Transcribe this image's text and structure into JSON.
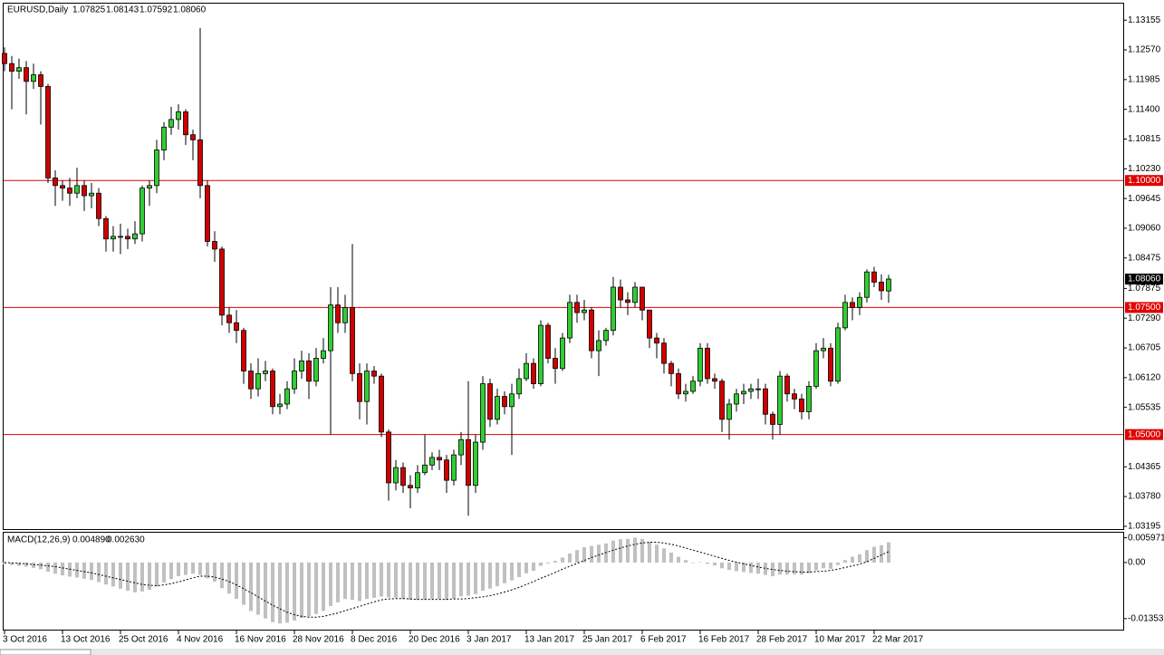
{
  "chart_data": [
    {
      "type": "candlestick",
      "title": "EURUSD,Daily",
      "readout": [
        "1.07825",
        "1.08143",
        "1.07592",
        "1.08060"
      ],
      "categories": [
        "3 Oct 2016",
        null,
        null,
        null,
        null,
        null,
        null,
        null,
        "13 Oct 2016",
        null,
        null,
        null,
        null,
        null,
        null,
        null,
        "25 Oct 2016",
        null,
        null,
        null,
        null,
        null,
        null,
        null,
        "4 Nov 2016",
        null,
        null,
        null,
        null,
        null,
        null,
        null,
        "16 Nov 2016",
        null,
        null,
        null,
        null,
        null,
        null,
        null,
        "28 Nov 2016",
        null,
        null,
        null,
        null,
        null,
        null,
        null,
        "8 Dec 2016",
        null,
        null,
        null,
        null,
        null,
        null,
        null,
        "20 Dec 2016",
        null,
        null,
        null,
        null,
        null,
        null,
        null,
        "3 Jan 2017",
        null,
        null,
        null,
        null,
        null,
        null,
        null,
        "13 Jan 2017",
        null,
        null,
        null,
        null,
        null,
        null,
        null,
        "25 Jan 2017",
        null,
        null,
        null,
        null,
        null,
        null,
        null,
        "6 Feb 2017",
        null,
        null,
        null,
        null,
        null,
        null,
        null,
        "16 Feb 2017",
        null,
        null,
        null,
        null,
        null,
        null,
        null,
        "28 Feb 2017",
        null,
        null,
        null,
        null,
        null,
        null,
        null,
        "10 Mar 2017",
        null,
        null,
        null,
        null,
        null,
        null,
        null,
        "22 Mar 2017",
        null,
        null
      ],
      "open": [
        1.125,
        1.123,
        1.1215,
        1.1222,
        1.1195,
        1.1208,
        1.1185,
        1.1005,
        1.099,
        1.0985,
        1.0975,
        1.099,
        1.097,
        1.0975,
        1.0925,
        1.0885,
        1.089,
        1.089,
        1.0885,
        1.0895,
        1.0985,
        1.099,
        1.106,
        1.1105,
        1.112,
        1.1135,
        1.109,
        1.108,
        1.099,
        1.088,
        1.0865,
        1.0735,
        1.072,
        1.0705,
        1.0625,
        1.059,
        1.062,
        1.0625,
        1.0555,
        1.056,
        1.059,
        1.0625,
        1.0645,
        1.0605,
        1.065,
        1.0665,
        1.0755,
        1.072,
        1.075,
        1.062,
        1.0565,
        1.0625,
        1.0615,
        1.0505,
        1.0405,
        1.0435,
        1.04,
        1.0395,
        1.0425,
        1.044,
        1.0455,
        1.045,
        1.041,
        1.046,
        1.049,
        1.04,
        1.0485,
        1.06,
        1.053,
        1.0575,
        1.0555,
        1.058,
        1.061,
        1.064,
        1.06,
        1.0715,
        1.065,
        1.063,
        1.069,
        1.076,
        1.074,
        1.0745,
        1.0665,
        1.0685,
        1.0705,
        1.079,
        1.0765,
        1.076,
        1.079,
        1.0745,
        1.069,
        1.068,
        1.064,
        1.062,
        1.058,
        1.0585,
        1.0605,
        1.067,
        1.061,
        1.0605,
        1.053,
        1.056,
        1.058,
        1.0585,
        1.059,
        1.059,
        1.054,
        1.052,
        1.0615,
        1.058,
        1.057,
        1.0545,
        1.0595,
        1.0665,
        1.067,
        1.0605,
        1.071,
        1.076,
        1.075,
        1.077,
        1.082,
        1.08,
        1.07825
      ],
      "high": [
        1.1262,
        1.1245,
        1.124,
        1.1235,
        1.123,
        1.1215,
        1.119,
        1.102,
        1.1,
        1.1005,
        1.1025,
        1.1,
        1.0995,
        1.0985,
        1.093,
        1.091,
        1.0915,
        1.0905,
        1.092,
        1.099,
        1.1,
        1.108,
        1.1115,
        1.1145,
        1.115,
        1.114,
        1.11,
        1.13,
        1.1,
        1.09,
        1.087,
        1.075,
        1.0745,
        1.071,
        1.064,
        1.065,
        1.0645,
        1.063,
        1.058,
        1.0605,
        1.065,
        1.0665,
        1.066,
        1.067,
        1.069,
        1.079,
        1.079,
        1.0775,
        1.0875,
        1.064,
        1.064,
        1.0635,
        1.062,
        1.051,
        1.045,
        1.0445,
        1.042,
        1.044,
        1.05,
        1.0465,
        1.047,
        1.046,
        1.047,
        1.0505,
        1.0605,
        1.05,
        1.0615,
        1.061,
        1.059,
        1.0585,
        1.06,
        1.063,
        1.066,
        1.065,
        1.0725,
        1.072,
        1.067,
        1.07,
        1.0775,
        1.0775,
        1.0765,
        1.075,
        1.0705,
        1.071,
        1.081,
        1.0805,
        1.078,
        1.08,
        1.079,
        1.0745,
        1.07,
        1.069,
        1.0645,
        1.063,
        1.06,
        1.0615,
        1.068,
        1.068,
        1.062,
        1.061,
        1.057,
        1.059,
        1.06,
        1.06,
        1.061,
        1.06,
        1.0545,
        1.0625,
        1.062,
        1.059,
        1.058,
        1.0605,
        1.068,
        1.069,
        1.068,
        1.072,
        1.0775,
        1.077,
        1.078,
        1.0825,
        1.083,
        1.0815,
        1.08143
      ],
      "low": [
        1.1215,
        1.114,
        1.12,
        1.113,
        1.118,
        1.111,
        1.0995,
        1.095,
        1.096,
        1.095,
        1.0965,
        1.094,
        1.0945,
        1.091,
        1.086,
        1.086,
        1.0855,
        1.0865,
        1.0875,
        1.088,
        1.095,
        1.0975,
        1.104,
        1.109,
        1.11,
        1.107,
        1.104,
        1.0965,
        1.087,
        1.084,
        1.0715,
        1.07,
        1.068,
        1.06,
        1.057,
        1.0575,
        1.0605,
        1.054,
        1.054,
        1.055,
        1.058,
        1.061,
        1.057,
        1.0595,
        1.064,
        1.05,
        1.07,
        1.07,
        1.0605,
        1.053,
        1.052,
        1.06,
        1.0495,
        1.037,
        1.039,
        1.0385,
        1.0355,
        1.0385,
        1.042,
        1.043,
        1.043,
        1.0385,
        1.04,
        1.044,
        1.034,
        1.0385,
        1.047,
        1.0515,
        1.052,
        1.054,
        1.046,
        1.057,
        1.0605,
        1.059,
        1.0595,
        1.064,
        1.06,
        1.0625,
        1.068,
        1.072,
        1.0725,
        1.065,
        1.0615,
        1.0675,
        1.0695,
        1.075,
        1.0735,
        1.075,
        1.0725,
        1.067,
        1.065,
        1.062,
        1.0595,
        1.057,
        1.0565,
        1.058,
        1.0595,
        1.06,
        1.059,
        1.0505,
        1.049,
        1.0545,
        1.056,
        1.057,
        1.057,
        1.052,
        1.049,
        1.05,
        1.0565,
        1.055,
        1.053,
        1.053,
        1.059,
        1.065,
        1.0595,
        1.06,
        1.0705,
        1.0725,
        1.0735,
        1.076,
        1.079,
        1.0765,
        1.07592
      ],
      "close": [
        1.123,
        1.1215,
        1.1222,
        1.1195,
        1.1208,
        1.1185,
        1.1005,
        1.099,
        1.0985,
        1.0975,
        1.099,
        1.097,
        1.0975,
        1.0925,
        1.0885,
        1.089,
        1.089,
        1.0885,
        1.0895,
        1.0985,
        1.099,
        1.106,
        1.1105,
        1.112,
        1.1135,
        1.109,
        1.108,
        1.099,
        1.088,
        1.0865,
        1.0735,
        1.072,
        1.0705,
        1.0625,
        1.059,
        1.062,
        1.0625,
        1.0555,
        1.056,
        1.059,
        1.0625,
        1.0645,
        1.0605,
        1.065,
        1.0665,
        1.0755,
        1.072,
        1.075,
        1.062,
        1.0565,
        1.0625,
        1.0615,
        1.0505,
        1.0405,
        1.0435,
        1.04,
        1.0395,
        1.0425,
        1.044,
        1.0455,
        1.045,
        1.041,
        1.046,
        1.049,
        1.04,
        1.0485,
        1.06,
        1.053,
        1.0575,
        1.0555,
        1.058,
        1.061,
        1.064,
        1.06,
        1.0715,
        1.065,
        1.063,
        1.069,
        1.076,
        1.074,
        1.0745,
        1.0665,
        1.0685,
        1.0705,
        1.079,
        1.0765,
        1.076,
        1.079,
        1.0745,
        1.069,
        1.068,
        1.064,
        1.062,
        1.058,
        1.0585,
        1.0605,
        1.067,
        1.061,
        1.0605,
        1.053,
        1.056,
        1.058,
        1.0585,
        1.059,
        1.059,
        1.054,
        1.052,
        1.0615,
        1.058,
        1.057,
        1.0545,
        1.0595,
        1.0665,
        1.067,
        1.0605,
        1.071,
        1.076,
        1.075,
        1.077,
        1.082,
        1.08,
        1.0783,
        1.0806
      ],
      "up_color": "#32cd32",
      "down_color": "#d00000",
      "ylim": [
        1.0314,
        1.1348
      ],
      "yticks": [
        1.13155,
        {
          "value": 1.1257,
          "label": "1.12570"
        },
        1.11985,
        {
          "value": 1.114,
          "label": "1.11400"
        },
        1.10815,
        {
          "value": 1.1023,
          "label": "1.10230"
        },
        1.09645,
        {
          "value": 1.0906,
          "label": "1.09060"
        },
        1.08475,
        1.07875,
        {
          "value": 1.0729,
          "label": "1.07290"
        },
        1.06705,
        {
          "value": 1.0612,
          "label": "1.06120"
        },
        1.05535,
        1.04365,
        {
          "value": 1.0378,
          "label": "1.03780"
        },
        1.03195
      ],
      "hlines": [
        {
          "value": 1.1,
          "label": "1.10000"
        },
        {
          "value": 1.075,
          "label": "1.07500"
        },
        {
          "value": 1.05,
          "label": "1.05000"
        }
      ],
      "hline_color": "#e00000",
      "price_marker": {
        "value": 1.0806,
        "label": "1.08060"
      }
    },
    {
      "type": "bar",
      "title": "MACD(12,26,9)",
      "readout": [
        "0.004890",
        "0.002630"
      ],
      "values": [
        -0.0004,
        -0.0006,
        -0.0008,
        -0.001,
        -0.0013,
        -0.0016,
        -0.0022,
        -0.0027,
        -0.0031,
        -0.0034,
        -0.0036,
        -0.0039,
        -0.0042,
        -0.0047,
        -0.0053,
        -0.0058,
        -0.0063,
        -0.0068,
        -0.0072,
        -0.007,
        -0.0066,
        -0.0058,
        -0.0048,
        -0.004,
        -0.0033,
        -0.003,
        -0.0027,
        -0.003,
        -0.0038,
        -0.0046,
        -0.0062,
        -0.0075,
        -0.0088,
        -0.0102,
        -0.0117,
        -0.0126,
        -0.0135,
        -0.0144,
        -0.0147,
        -0.0145,
        -0.014,
        -0.0134,
        -0.013,
        -0.0124,
        -0.0117,
        -0.0105,
        -0.0096,
        -0.0088,
        -0.009,
        -0.0093,
        -0.0088,
        -0.0085,
        -0.0082,
        -0.0084,
        -0.0085,
        -0.0088,
        -0.009,
        -0.009,
        -0.0089,
        -0.0088,
        -0.0088,
        -0.009,
        -0.0087,
        -0.0082,
        -0.008,
        -0.0076,
        -0.0068,
        -0.0063,
        -0.0057,
        -0.005,
        -0.0043,
        -0.0035,
        -0.0026,
        -0.002,
        -0.0008,
        -0.0002,
        0.0004,
        0.0012,
        0.0022,
        0.003,
        0.0037,
        0.004,
        0.0043,
        0.0046,
        0.0053,
        0.0056,
        0.0057,
        0.006,
        0.0057,
        0.005,
        0.0043,
        0.0034,
        0.0024,
        0.0014,
        0.0006,
        0.0,
        0.0001,
        -0.0003,
        -0.0007,
        -0.0014,
        -0.0018,
        -0.0021,
        -0.0023,
        -0.0025,
        -0.0027,
        -0.003,
        -0.0033,
        -0.0029,
        -0.0029,
        -0.0028,
        -0.0029,
        -0.0026,
        -0.0019,
        -0.0014,
        -0.0015,
        -0.0006,
        0.0006,
        0.0014,
        0.002,
        0.003,
        0.0038,
        0.0042,
        0.00489
      ],
      "signal": [
        0.0,
        -0.0001,
        -0.0002,
        -0.0003,
        -0.0005,
        -0.0006,
        -0.0008,
        -0.001,
        -0.0013,
        -0.0016,
        -0.0019,
        -0.0022,
        -0.0025,
        -0.0029,
        -0.0033,
        -0.0037,
        -0.0041,
        -0.0045,
        -0.0049,
        -0.0053,
        -0.0055,
        -0.0056,
        -0.0054,
        -0.0051,
        -0.0047,
        -0.0042,
        -0.0037,
        -0.0033,
        -0.0033,
        -0.0035,
        -0.004,
        -0.0046,
        -0.0054,
        -0.0063,
        -0.0073,
        -0.0083,
        -0.0093,
        -0.0103,
        -0.0112,
        -0.012,
        -0.0126,
        -0.013,
        -0.0132,
        -0.0132,
        -0.013,
        -0.0126,
        -0.0122,
        -0.0116,
        -0.0111,
        -0.0106,
        -0.01,
        -0.0095,
        -0.009,
        -0.0088,
        -0.0087,
        -0.0087,
        -0.0088,
        -0.0089,
        -0.0089,
        -0.0089,
        -0.0089,
        -0.0089,
        -0.0088,
        -0.0088,
        -0.0087,
        -0.0085,
        -0.0083,
        -0.008,
        -0.0076,
        -0.0071,
        -0.0066,
        -0.006,
        -0.0053,
        -0.0046,
        -0.0038,
        -0.0031,
        -0.0024,
        -0.0016,
        -0.0009,
        -0.0002,
        0.0005,
        0.0012,
        0.0018,
        0.0024,
        0.003,
        0.0035,
        0.004,
        0.0044,
        0.0047,
        0.0049,
        0.0049,
        0.0047,
        0.0044,
        0.004,
        0.0035,
        0.003,
        0.0025,
        0.002,
        0.0015,
        0.001,
        0.0005,
        0.0001,
        -0.0003,
        -0.0007,
        -0.0011,
        -0.0014,
        -0.0017,
        -0.0019,
        -0.0021,
        -0.0022,
        -0.0023,
        -0.0023,
        -0.0022,
        -0.0021,
        -0.0019,
        -0.0016,
        -0.0012,
        -0.0008,
        -0.0004,
        0.0002,
        0.001,
        0.0018,
        0.00263
      ],
      "color": "#c0c0c0",
      "signal_color": "#000000",
      "ylim": [
        -0.0162,
        0.0072
      ],
      "yticks": [
        0.005971,
        {
          "value": 0,
          "label": "0.00"
        },
        -0.013539
      ]
    }
  ]
}
